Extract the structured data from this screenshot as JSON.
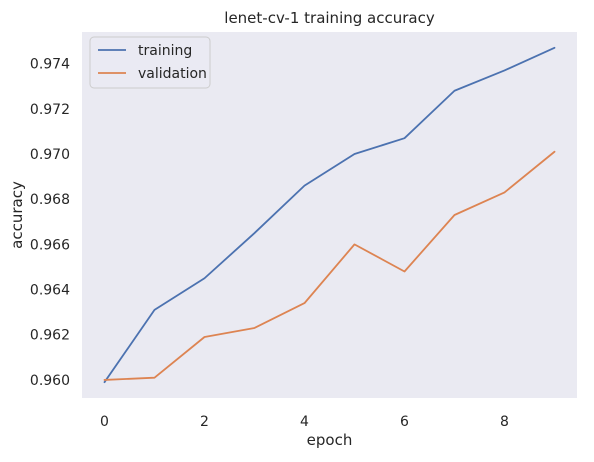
{
  "chart_data": {
    "type": "line",
    "title": "lenet-cv-1 training accuracy",
    "xlabel": "epoch",
    "ylabel": "accuracy",
    "xlim": [
      -0.45,
      9.45
    ],
    "ylim": [
      0.9592,
      0.9754
    ],
    "grid": false,
    "legend_position": "top-left",
    "x": [
      0,
      1,
      2,
      3,
      4,
      5,
      6,
      7,
      8,
      9
    ],
    "xticks": [
      0,
      2,
      4,
      6,
      8
    ],
    "xtick_labels": [
      "0",
      "2",
      "4",
      "6",
      "8"
    ],
    "yticks": [
      0.96,
      0.962,
      0.964,
      0.966,
      0.968,
      0.97,
      0.972,
      0.974
    ],
    "ytick_labels": [
      "0.960",
      "0.962",
      "0.964",
      "0.966",
      "0.968",
      "0.970",
      "0.972",
      "0.974"
    ],
    "series": [
      {
        "name": "training",
        "color": "#4c72b0",
        "values": [
          0.9599,
          0.9631,
          0.9645,
          0.9665,
          0.9686,
          0.97,
          0.9707,
          0.9728,
          0.9737,
          0.9747
        ]
      },
      {
        "name": "validation",
        "color": "#dd8452",
        "values": [
          0.96,
          0.9601,
          0.9619,
          0.9623,
          0.9634,
          0.966,
          0.9648,
          0.9673,
          0.9683,
          0.9701
        ]
      }
    ]
  },
  "colors": {
    "plot_background": "#eaeaf2",
    "text": "#262626"
  }
}
